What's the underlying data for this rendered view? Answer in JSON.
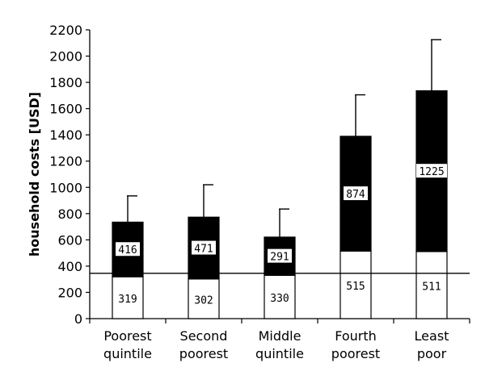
{
  "chart_data": {
    "type": "bar",
    "stacked": true,
    "ylabel": "household costs [USD]",
    "ylim": [
      0,
      2200
    ],
    "yticks": [
      0,
      200,
      400,
      600,
      800,
      1000,
      1200,
      1400,
      1600,
      1800,
      2000,
      2200
    ],
    "categories": [
      [
        "Poorest",
        "quintile"
      ],
      [
        "Second",
        "poorest"
      ],
      [
        "Middle",
        "quintile"
      ],
      [
        "Fourth",
        "poorest"
      ],
      [
        "Least",
        "poor"
      ]
    ],
    "series": [
      {
        "values": [
          319,
          302,
          330,
          515,
          511
        ],
        "color": "#ffffff"
      },
      {
        "values": [
          416,
          471,
          291,
          874,
          1225
        ],
        "color": "#000000"
      }
    ],
    "error_bar_tops": [
      935,
      1020,
      835,
      1705,
      2125
    ],
    "reference_line": 345,
    "grid": false,
    "legend": "none"
  }
}
